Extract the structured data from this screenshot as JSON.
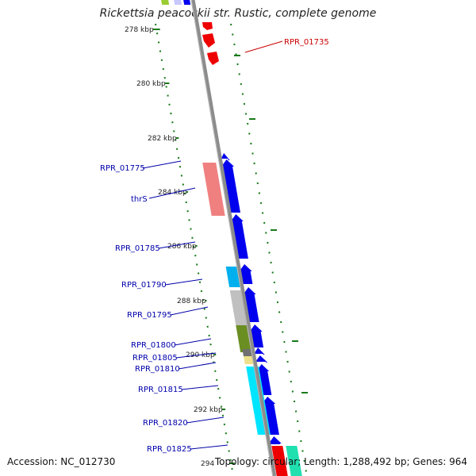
{
  "title": "Rickettsia peacockii str. Rustic, complete genome",
  "footer": {
    "accession": "Accession: NC_012730",
    "info": "Topology: circular; Length: 1,288,492 bp; Genes: 964"
  },
  "colors": {
    "backbone": "#8c8c8c",
    "tick": "#1a7a1a",
    "label_blue": "#0000aa",
    "label_red": "#cc0000"
  },
  "ticks": [
    {
      "label": "278 kbp"
    },
    {
      "label": "280 kbp"
    },
    {
      "label": "282 kbp"
    },
    {
      "label": "284 kbp"
    },
    {
      "label": "286 kbp"
    },
    {
      "label": "288 kbp"
    },
    {
      "label": "290 kbp"
    },
    {
      "label": "292 kbp"
    },
    {
      "label": "294"
    }
  ],
  "gene_labels": [
    {
      "text": "RPR_01735",
      "color": "#cc0000"
    },
    {
      "text": "RPR_01775",
      "color": "#0000aa"
    },
    {
      "text": "thrS",
      "color": "#0000aa"
    },
    {
      "text": "RPR_01785",
      "color": "#0000aa"
    },
    {
      "text": "RPR_01790",
      "color": "#0000aa"
    },
    {
      "text": "RPR_01795",
      "color": "#0000aa"
    },
    {
      "text": "RPR_01800",
      "color": "#0000aa"
    },
    {
      "text": "RPR_01805",
      "color": "#0000aa"
    },
    {
      "text": "RPR_01810",
      "color": "#0000aa"
    },
    {
      "text": "RPR_01815",
      "color": "#0000aa"
    },
    {
      "text": "RPR_01820",
      "color": "#0000aa"
    },
    {
      "text": "RPR_01825",
      "color": "#0000aa"
    }
  ],
  "feature_colors": {
    "cds": "#0000ee",
    "red_cds": "#ee0000",
    "salmon": "#f08080",
    "cyan": "#00e5ff",
    "skyblue": "#00b0ee",
    "gray": "#c0c0c0",
    "olive": "#6b8e23",
    "dark_gray": "#707070",
    "khaki": "#eee08a",
    "aqua": "#20e0b0",
    "lime": "#9acd32",
    "lavender": "#c8c8ff"
  }
}
